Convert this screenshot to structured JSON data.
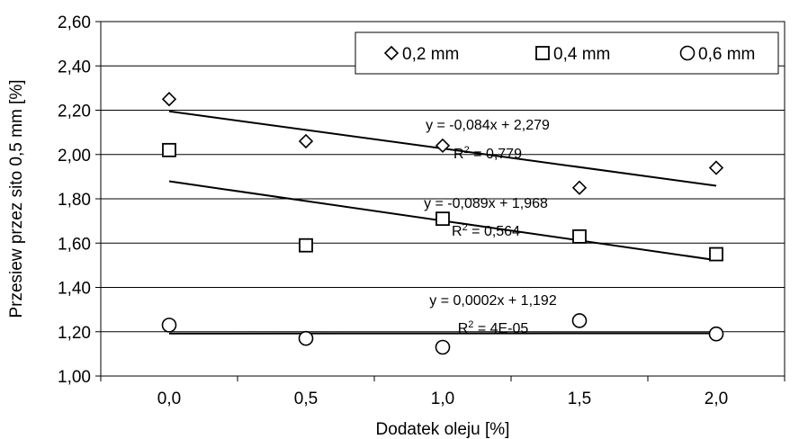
{
  "chart_data": {
    "type": "scatter",
    "title": "",
    "xlabel": "Dodatek oleju [%]",
    "ylabel": "Przesiew przez sito 0,5 mm [%]",
    "xlim": [
      -0.25,
      2.25
    ],
    "ylim": [
      1.0,
      2.6
    ],
    "x_tick_labels": [
      "0,0",
      "0,5",
      "1,0",
      "1,5",
      "2,0"
    ],
    "y_tick_labels": [
      "1,00",
      "1,20",
      "1,40",
      "1,60",
      "1,80",
      "2,00",
      "2,20",
      "2,40",
      "2,60"
    ],
    "grid": "horizontal",
    "legend_position": "top-right",
    "series": [
      {
        "name": "0,2 mm",
        "marker": "diamond",
        "x": [
          0.0,
          0.5,
          1.0,
          1.5,
          2.0
        ],
        "y": [
          2.25,
          2.06,
          2.04,
          1.85,
          1.94
        ],
        "trendline": {
          "y_start": 2.195,
          "y_end": 1.859,
          "equation": "y = -0,084x + 2,279",
          "r2_prefix": "R",
          "r2_sup": "2",
          "r2_value": " = 0,779"
        }
      },
      {
        "name": "0,4 mm",
        "marker": "square",
        "x": [
          0.0,
          0.5,
          1.0,
          1.5,
          2.0
        ],
        "y": [
          2.02,
          1.59,
          1.71,
          1.63,
          1.55
        ],
        "trendline": {
          "y_start": 1.879,
          "y_end": 1.523,
          "equation": "y = -0,089x + 1,968",
          "r2_prefix": "R",
          "r2_sup": "2",
          "r2_value": " = 0,564"
        }
      },
      {
        "name": "0,6 mm",
        "marker": "circle",
        "x": [
          0.0,
          0.5,
          1.0,
          1.5,
          2.0
        ],
        "y": [
          1.23,
          1.17,
          1.13,
          1.25,
          1.19
        ],
        "trendline": {
          "y_start": 1.192,
          "y_end": 1.193,
          "equation": "y = 0,0002x + 1,192",
          "r2_prefix": "R",
          "r2_sup": "2",
          "r2_value": " = 4E-05"
        }
      }
    ]
  }
}
